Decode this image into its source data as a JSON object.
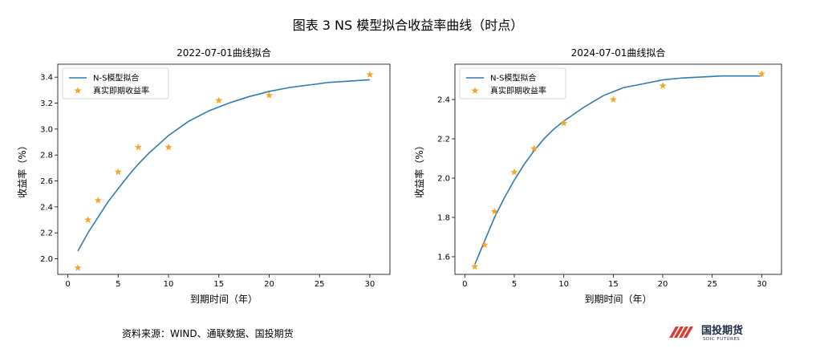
{
  "page": {
    "title": "图表 3 NS 模型拟合收益率曲线（时点）",
    "source": "资料来源：WIND、通联数据、国投期货",
    "logo": {
      "cn": "国投期货",
      "en": "SDIC FUTURES"
    }
  },
  "colors": {
    "line": "#2c7bb6",
    "marker": "#f5a623",
    "axis": "#000000"
  },
  "chart_data": [
    {
      "type": "line",
      "title": "2022-07-01曲线拟合",
      "xlabel": "到期时间（年）",
      "ylabel": "收益率（%）",
      "xlim": [
        -1,
        32
      ],
      "ylim": [
        1.88,
        3.5
      ],
      "xticks": [
        0,
        5,
        10,
        15,
        20,
        25,
        30
      ],
      "yticks": [
        2.0,
        2.2,
        2.4,
        2.6,
        2.8,
        3.0,
        3.2,
        3.4
      ],
      "legend": {
        "position": "top-left",
        "line_label": "N-S模型拟合",
        "marker_label": "真实即期收益率"
      },
      "series": [
        {
          "name": "N-S模型拟合",
          "kind": "line",
          "x": [
            1,
            2,
            3,
            4,
            5,
            6,
            7,
            8,
            9,
            10,
            12,
            14,
            16,
            18,
            20,
            22,
            24,
            26,
            28,
            30
          ],
          "values": [
            2.06,
            2.2,
            2.32,
            2.44,
            2.54,
            2.64,
            2.73,
            2.81,
            2.88,
            2.95,
            3.06,
            3.14,
            3.2,
            3.25,
            3.29,
            3.32,
            3.34,
            3.36,
            3.37,
            3.38
          ]
        },
        {
          "name": "真实即期收益率",
          "kind": "scatter",
          "x": [
            1,
            2,
            3,
            5,
            7,
            10,
            15,
            20,
            30
          ],
          "values": [
            1.93,
            2.3,
            2.45,
            2.67,
            2.86,
            2.86,
            3.22,
            3.26,
            3.42
          ]
        }
      ]
    },
    {
      "type": "line",
      "title": "2024-07-01曲线拟合",
      "xlabel": "到期时间（年）",
      "ylabel": "收益率（%）",
      "xlim": [
        -1,
        32
      ],
      "ylim": [
        1.51,
        2.58
      ],
      "xticks": [
        0,
        5,
        10,
        15,
        20,
        25,
        30
      ],
      "yticks": [
        1.6,
        1.8,
        2.0,
        2.2,
        2.4
      ],
      "legend": {
        "position": "top-left",
        "line_label": "N-S模型拟合",
        "marker_label": "真实即期收益率"
      },
      "series": [
        {
          "name": "N-S模型拟合",
          "kind": "line",
          "x": [
            1,
            2,
            3,
            4,
            5,
            6,
            7,
            8,
            9,
            10,
            12,
            14,
            16,
            18,
            20,
            22,
            24,
            26,
            28,
            30
          ],
          "values": [
            1.56,
            1.68,
            1.8,
            1.9,
            1.99,
            2.07,
            2.14,
            2.2,
            2.25,
            2.29,
            2.36,
            2.42,
            2.46,
            2.48,
            2.5,
            2.51,
            2.515,
            2.52,
            2.52,
            2.52
          ]
        },
        {
          "name": "真实即期收益率",
          "kind": "scatter",
          "x": [
            1,
            2,
            3,
            5,
            7,
            10,
            15,
            20,
            30
          ],
          "values": [
            1.55,
            1.66,
            1.83,
            2.03,
            2.15,
            2.28,
            2.4,
            2.47,
            2.53
          ]
        }
      ]
    }
  ]
}
